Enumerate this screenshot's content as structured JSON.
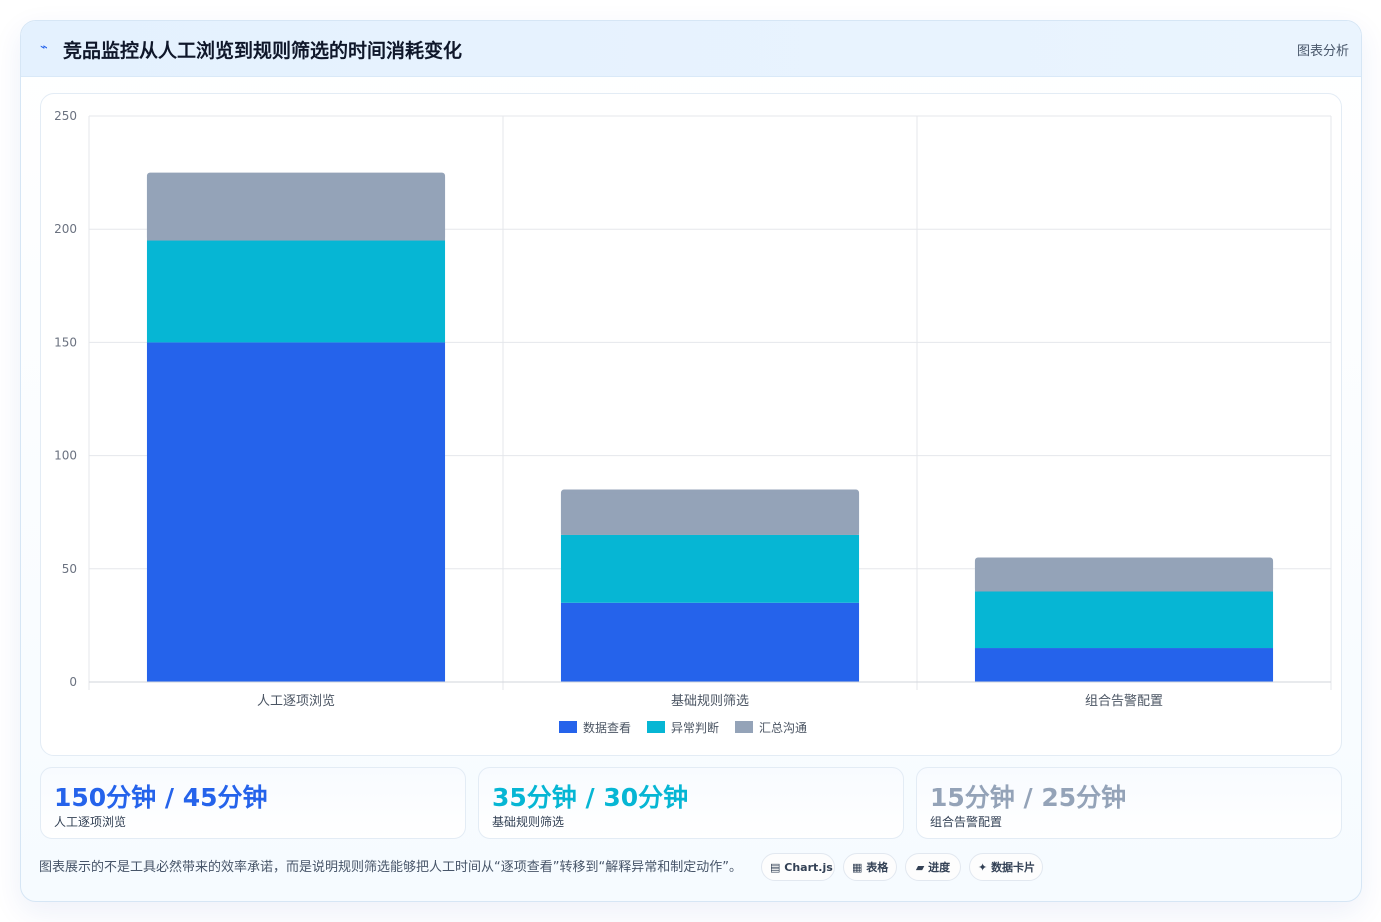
{
  "header": {
    "title": "竞品监控从人工浏览到规则筛选的时间消耗变化",
    "tag": "图表分析"
  },
  "chart_data": {
    "type": "bar",
    "stacked": true,
    "categories": [
      "人工逐项浏览",
      "基础规则筛选",
      "组合告警配置"
    ],
    "series": [
      {
        "name": "数据查看",
        "values": [
          150,
          35,
          15
        ],
        "color": "#2563eb"
      },
      {
        "name": "异常判断",
        "values": [
          45,
          30,
          25
        ],
        "color": "#06b6d4"
      },
      {
        "name": "汇总沟通",
        "values": [
          30,
          20,
          15
        ],
        "color": "#94a3b8"
      }
    ],
    "ylim": [
      0,
      250
    ],
    "yticks": [
      0,
      50,
      100,
      150,
      200,
      250
    ],
    "legend": "bottom",
    "grid": true
  },
  "stats": [
    {
      "value": "150分钟 / 45分钟",
      "label": "人工逐项浏览",
      "color": "#2563eb"
    },
    {
      "value": "35分钟 / 30分钟",
      "label": "基础规则筛选",
      "color": "#06b6d4"
    },
    {
      "value": "15分钟 / 25分钟",
      "label": "组合告警配置",
      "color": "#94a3b8"
    }
  ],
  "footer": {
    "note": "图表展示的不是工具必然带来的效率承诺，而是说明规则筛选能够把人工时间从“逐项查看”转移到“解释异常和制定动作”。",
    "chips": [
      {
        "icon": "▤",
        "label": "Chart.js"
      },
      {
        "icon": "▦",
        "label": "表格"
      },
      {
        "icon": "▰",
        "label": "进度"
      },
      {
        "icon": "✦",
        "label": "数据卡片"
      }
    ]
  },
  "colors": {
    "accent": "#2563eb",
    "grid": "#e5e7eb"
  }
}
